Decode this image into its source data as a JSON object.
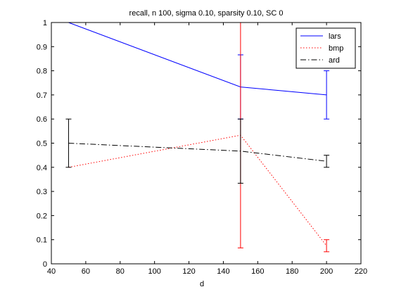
{
  "chart_data": {
    "type": "line",
    "title": "recall, n 100, sigma 0.10, sparsity 0.10, SC 0",
    "xlabel": "d",
    "ylabel": "",
    "xlim": [
      40,
      220
    ],
    "ylim": [
      0,
      1
    ],
    "xticks": [
      40,
      60,
      80,
      100,
      120,
      140,
      160,
      180,
      200,
      220
    ],
    "yticks": [
      0,
      0.1,
      0.2,
      0.3,
      0.4,
      0.5,
      0.6,
      0.7,
      0.8,
      0.9,
      1
    ],
    "ytick_labels": [
      "0",
      "0.1",
      "0.2",
      "0.3",
      "0.4",
      "0.5",
      "0.6",
      "0.7",
      "0.8",
      "0.9",
      "1"
    ],
    "grid": false,
    "legend_position": "top-right",
    "series": [
      {
        "name": "lars",
        "color": "#0000ff",
        "line_style": "solid",
        "x": [
          50,
          150,
          200
        ],
        "y": [
          1.0,
          0.733,
          0.7
        ],
        "error": [
          0.0,
          0.133,
          0.1
        ]
      },
      {
        "name": "bmp",
        "color": "#ff0000",
        "line_style": "dotted",
        "x": [
          50,
          150,
          200
        ],
        "y": [
          0.4,
          0.533,
          0.075
        ],
        "error": [
          0.0,
          0.467,
          0.025
        ]
      },
      {
        "name": "ard",
        "color": "#000000",
        "line_style": "dashdot",
        "x": [
          50,
          150,
          200
        ],
        "y": [
          0.5,
          0.467,
          0.425
        ],
        "error": [
          0.1,
          0.133,
          0.025
        ]
      }
    ]
  }
}
